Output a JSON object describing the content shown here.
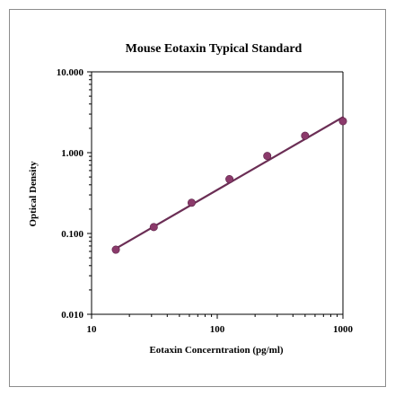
{
  "chart_data": {
    "type": "scatter",
    "title": "Mouse Eotaxin Typical Standard",
    "xlabel": "Eotaxin Concerntration (pg/ml)",
    "ylabel": "Optical Density",
    "xscale": "log",
    "yscale": "log",
    "xlim": [
      10,
      1000
    ],
    "ylim": [
      0.01,
      10
    ],
    "x_ticks": [
      "10",
      "100",
      "1000"
    ],
    "y_ticks": [
      "0.010",
      "0.100",
      "1.000",
      "10.000"
    ],
    "grid": false,
    "legend": "none",
    "series": [
      {
        "x": [
          15.6,
          31.25,
          62.5,
          125,
          250,
          500,
          1000
        ],
        "y": [
          0.063,
          0.12,
          0.24,
          0.47,
          0.91,
          1.62,
          2.45
        ]
      }
    ],
    "trendline": {
      "type": "power",
      "x_start": 15.6,
      "x_end": 1000,
      "y_start": 0.065,
      "y_end": 2.75
    },
    "colors": {
      "marker": "#8b3a6b",
      "line": "#6b2e55",
      "axis": "#000000"
    }
  }
}
